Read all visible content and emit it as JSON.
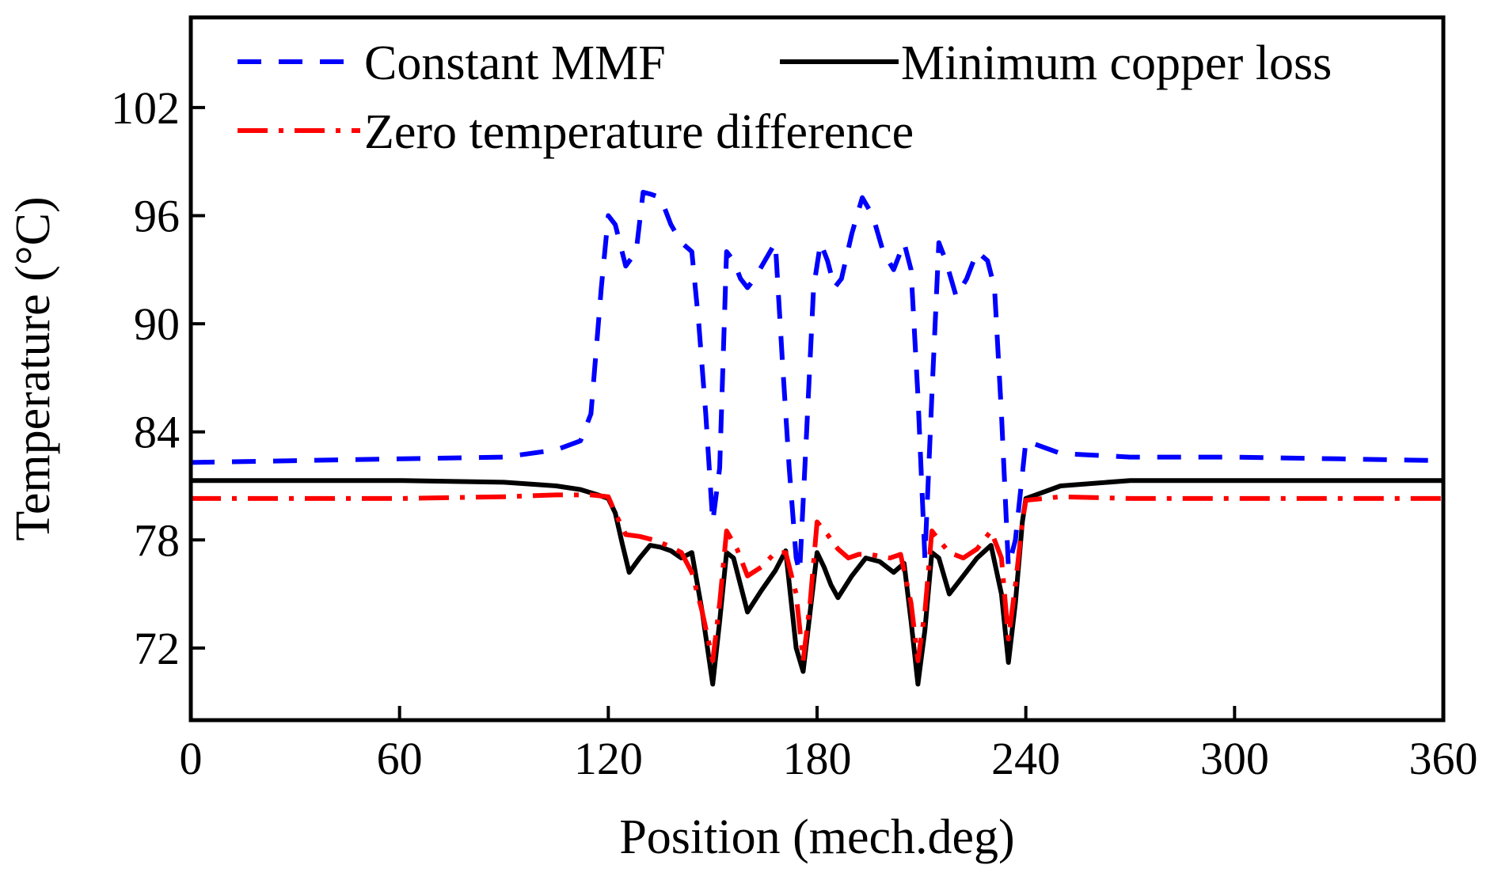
{
  "chart_data": {
    "type": "line",
    "title": "",
    "xlabel": "Position (mech.deg)",
    "ylabel": "Temperature (°C)",
    "xlim": [
      0,
      360
    ],
    "ylim": [
      68,
      107
    ],
    "xticks": [
      0,
      60,
      120,
      180,
      240,
      300,
      360
    ],
    "yticks": [
      72,
      78,
      84,
      90,
      96,
      102
    ],
    "grid": false,
    "legend_placement": "top",
    "series": [
      {
        "name": "Constant MMF",
        "color": "#0000ff",
        "style": "dashed",
        "x": [
          0,
          30,
          60,
          90,
          105,
          112,
          115,
          118,
          120,
          122,
          125,
          128,
          130,
          132,
          135,
          138,
          141,
          144,
          146,
          148,
          150,
          152,
          154,
          156,
          158,
          160,
          162,
          165,
          168,
          170,
          172,
          174,
          175,
          177,
          179,
          181,
          183,
          185,
          187,
          190,
          193,
          196,
          199,
          202,
          205,
          207,
          209,
          211,
          213,
          215,
          217,
          220,
          223,
          226,
          229,
          231,
          233,
          235,
          237,
          240,
          250,
          270,
          300,
          330,
          360
        ],
        "y": [
          82.3,
          82.4,
          82.5,
          82.6,
          83.0,
          83.5,
          85.0,
          92.0,
          96.0,
          95.5,
          93.2,
          94.0,
          97.3,
          97.2,
          97.0,
          95.5,
          94.5,
          94.0,
          90.0,
          85.0,
          79.0,
          82.0,
          94.0,
          93.5,
          92.5,
          92.0,
          92.5,
          93.5,
          94.5,
          88.0,
          82.0,
          77.0,
          76.2,
          84.0,
          92.0,
          94.5,
          93.5,
          92.0,
          92.5,
          95.0,
          97.0,
          96.0,
          94.0,
          93.0,
          94.5,
          93.0,
          86.0,
          77.0,
          86.0,
          94.5,
          93.5,
          91.5,
          92.5,
          94.0,
          93.5,
          92.0,
          85.0,
          76.5,
          78.0,
          83.5,
          82.8,
          82.6,
          82.6,
          82.5,
          82.4
        ]
      },
      {
        "name": "Minimum copper loss",
        "color": "#000000",
        "style": "solid",
        "x": [
          0,
          30,
          60,
          90,
          105,
          112,
          117,
          120,
          122,
          124,
          126,
          129,
          132,
          135,
          138,
          141,
          144,
          147,
          150,
          152,
          154,
          156,
          160,
          164,
          168,
          171,
          174,
          176,
          178,
          180,
          182,
          184,
          186,
          190,
          194,
          198,
          202,
          205,
          207,
          209,
          211,
          213,
          215,
          218,
          222,
          226,
          230,
          233,
          235,
          237,
          239,
          240,
          250,
          270,
          300,
          330,
          360
        ],
        "y": [
          81.3,
          81.3,
          81.3,
          81.2,
          81.0,
          80.8,
          80.5,
          80.3,
          79.5,
          77.8,
          76.2,
          77.0,
          77.7,
          77.6,
          77.4,
          77.0,
          77.3,
          74.0,
          70.0,
          73.5,
          77.3,
          77.0,
          74.0,
          75.2,
          76.3,
          77.4,
          72.0,
          70.7,
          74.0,
          77.3,
          76.5,
          75.5,
          74.8,
          76.0,
          77.0,
          76.8,
          76.2,
          76.7,
          73.5,
          70.0,
          73.0,
          77.3,
          77.0,
          75.0,
          76.0,
          77.0,
          77.7,
          75.0,
          71.2,
          74.5,
          79.0,
          80.3,
          81.0,
          81.3,
          81.3,
          81.3,
          81.3
        ]
      },
      {
        "name": "Zero temperature difference",
        "color": "#ff0000",
        "style": "dashdot",
        "x": [
          0,
          30,
          60,
          90,
          105,
          115,
          120,
          122,
          125,
          129,
          133,
          137,
          141,
          144,
          147,
          150,
          152,
          154,
          157,
          160,
          164,
          168,
          171,
          174,
          176,
          178,
          180,
          183,
          186,
          189,
          192,
          195,
          198,
          201,
          204,
          207,
          209,
          211,
          213,
          215,
          218,
          222,
          226,
          230,
          233,
          235,
          237,
          239,
          240,
          250,
          270,
          300,
          330,
          360
        ],
        "y": [
          80.3,
          80.3,
          80.3,
          80.4,
          80.5,
          80.5,
          80.4,
          79.5,
          78.3,
          78.2,
          78.0,
          77.7,
          77.3,
          76.2,
          74.0,
          71.3,
          74.5,
          78.5,
          77.5,
          76.0,
          76.5,
          77.3,
          77.3,
          75.0,
          71.3,
          74.5,
          79.0,
          78.3,
          77.5,
          77.0,
          77.2,
          77.2,
          77.1,
          77.0,
          77.2,
          74.5,
          71.3,
          74.0,
          78.5,
          78.0,
          77.3,
          77.0,
          77.5,
          78.5,
          77.0,
          72.5,
          75.5,
          79.0,
          80.2,
          80.4,
          80.3,
          80.3,
          80.3,
          80.3
        ]
      }
    ]
  }
}
